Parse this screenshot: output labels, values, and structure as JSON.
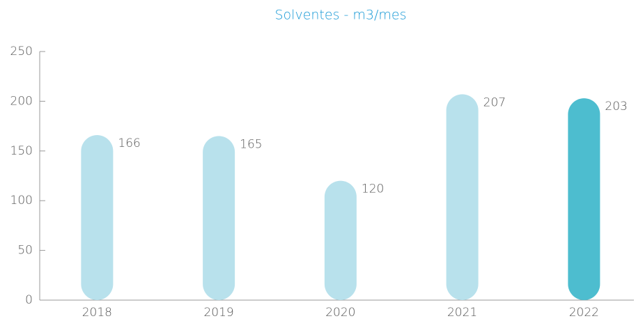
{
  "chart_data": {
    "type": "bar",
    "title": "Solventes - m3/mes",
    "categories": [
      "2018",
      "2019",
      "2020",
      "2021",
      "2022"
    ],
    "values": [
      166,
      165,
      120,
      207,
      203
    ],
    "colors": [
      "#b8e1ec",
      "#b8e1ec",
      "#b8e1ec",
      "#b8e1ec",
      "#4dbdcf"
    ],
    "ylim": [
      0,
      250
    ],
    "yticks": [
      0,
      50,
      100,
      150,
      200,
      250
    ],
    "grid": false
  }
}
